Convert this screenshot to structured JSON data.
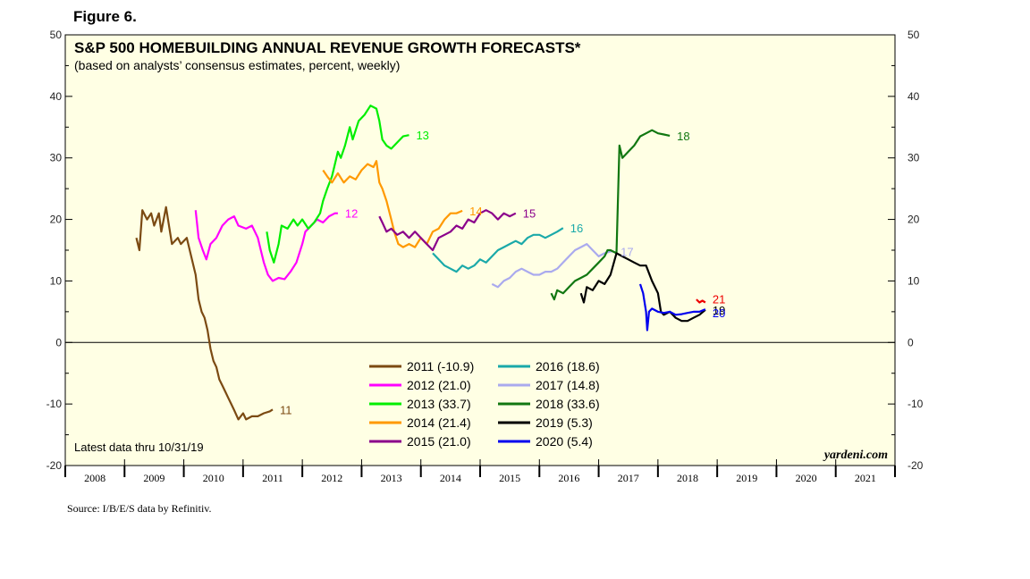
{
  "figure_label": "Figure 6.",
  "source": "Source: I/B/E/S data by Refinitiv.",
  "chart_data": {
    "type": "line",
    "title": "S&P 500 HOMEBUILDING ANNUAL REVENUE GROWTH FORECASTS*",
    "subtitle": "(based on analysts’ consensus estimates, percent, weekly)",
    "latest_note": "Latest data thru 10/31/19",
    "brand": "yardeni.com",
    "xlim": [
      2008,
      2022
    ],
    "ylim": [
      -20,
      50
    ],
    "y_ticks": [
      -20,
      -10,
      0,
      10,
      20,
      30,
      40,
      50
    ],
    "x_tick_labels": [
      "2008",
      "2009",
      "2010",
      "2011",
      "2012",
      "2013",
      "2014",
      "2015",
      "2016",
      "2017",
      "2018",
      "2019",
      "2020",
      "2021"
    ],
    "series": [
      {
        "name": "2011",
        "legend": "2011 (-10.9)",
        "end_label": "11",
        "color": "#7b4a12",
        "points": [
          [
            2009.2,
            17
          ],
          [
            2009.25,
            15
          ],
          [
            2009.3,
            21.5
          ],
          [
            2009.38,
            20
          ],
          [
            2009.45,
            21
          ],
          [
            2009.5,
            19
          ],
          [
            2009.58,
            21
          ],
          [
            2009.62,
            18
          ],
          [
            2009.7,
            22
          ],
          [
            2009.75,
            19
          ],
          [
            2009.8,
            16
          ],
          [
            2009.9,
            17
          ],
          [
            2009.95,
            16
          ],
          [
            2010.05,
            17
          ],
          [
            2010.1,
            15
          ],
          [
            2010.15,
            13
          ],
          [
            2010.2,
            11
          ],
          [
            2010.25,
            7
          ],
          [
            2010.3,
            5
          ],
          [
            2010.35,
            4
          ],
          [
            2010.4,
            2
          ],
          [
            2010.45,
            -1
          ],
          [
            2010.5,
            -3
          ],
          [
            2010.55,
            -4
          ],
          [
            2010.6,
            -6
          ],
          [
            2010.65,
            -7
          ],
          [
            2010.7,
            -8
          ],
          [
            2010.75,
            -9
          ],
          [
            2010.8,
            -10
          ],
          [
            2010.85,
            -11
          ],
          [
            2010.92,
            -12.5
          ],
          [
            2011.0,
            -11.5
          ],
          [
            2011.05,
            -12.5
          ],
          [
            2011.15,
            -12
          ],
          [
            2011.25,
            -12
          ],
          [
            2011.35,
            -11.5
          ],
          [
            2011.45,
            -11.2
          ],
          [
            2011.5,
            -10.9
          ]
        ]
      },
      {
        "name": "2012",
        "legend": "2012 (21.0)",
        "end_label": "12",
        "color": "#ff00ff",
        "points": [
          [
            2010.2,
            21.5
          ],
          [
            2010.25,
            17
          ],
          [
            2010.32,
            15
          ],
          [
            2010.38,
            13.5
          ],
          [
            2010.45,
            16
          ],
          [
            2010.55,
            17
          ],
          [
            2010.65,
            19
          ],
          [
            2010.75,
            20
          ],
          [
            2010.85,
            20.5
          ],
          [
            2010.92,
            19
          ],
          [
            2011.05,
            18.5
          ],
          [
            2011.15,
            19
          ],
          [
            2011.25,
            17
          ],
          [
            2011.3,
            15
          ],
          [
            2011.35,
            13
          ],
          [
            2011.42,
            11
          ],
          [
            2011.5,
            10
          ],
          [
            2011.6,
            10.5
          ],
          [
            2011.7,
            10.3
          ],
          [
            2011.8,
            11.5
          ],
          [
            2011.9,
            13
          ],
          [
            2012.0,
            16
          ],
          [
            2012.05,
            18
          ],
          [
            2012.15,
            19
          ],
          [
            2012.25,
            20
          ],
          [
            2012.35,
            19.5
          ],
          [
            2012.45,
            20.5
          ],
          [
            2012.55,
            21
          ],
          [
            2012.6,
            21
          ]
        ]
      },
      {
        "name": "2013",
        "legend": "2013 (33.7)",
        "end_label": "13",
        "color": "#00ee00",
        "points": [
          [
            2011.4,
            18
          ],
          [
            2011.45,
            15
          ],
          [
            2011.52,
            13
          ],
          [
            2011.6,
            16
          ],
          [
            2011.65,
            19
          ],
          [
            2011.75,
            18.5
          ],
          [
            2011.85,
            20
          ],
          [
            2011.92,
            19
          ],
          [
            2012.0,
            20
          ],
          [
            2012.1,
            18.5
          ],
          [
            2012.2,
            19.5
          ],
          [
            2012.3,
            21
          ],
          [
            2012.35,
            23
          ],
          [
            2012.42,
            25
          ],
          [
            2012.5,
            27
          ],
          [
            2012.55,
            29
          ],
          [
            2012.6,
            31
          ],
          [
            2012.65,
            30
          ],
          [
            2012.72,
            32
          ],
          [
            2012.8,
            35
          ],
          [
            2012.85,
            33
          ],
          [
            2012.95,
            36
          ],
          [
            2013.05,
            37
          ],
          [
            2013.15,
            38.5
          ],
          [
            2013.25,
            38
          ],
          [
            2013.3,
            36
          ],
          [
            2013.35,
            33
          ],
          [
            2013.42,
            32
          ],
          [
            2013.5,
            31.5
          ],
          [
            2013.6,
            32.5
          ],
          [
            2013.7,
            33.5
          ],
          [
            2013.8,
            33.7
          ]
        ]
      },
      {
        "name": "2014",
        "legend": "2014 (21.4)",
        "end_label": "14",
        "color": "#ff9900",
        "points": [
          [
            2012.35,
            28
          ],
          [
            2012.42,
            27
          ],
          [
            2012.5,
            26
          ],
          [
            2012.6,
            27.5
          ],
          [
            2012.7,
            26
          ],
          [
            2012.8,
            27
          ],
          [
            2012.9,
            26.5
          ],
          [
            2013.0,
            28
          ],
          [
            2013.1,
            29
          ],
          [
            2013.2,
            28.5
          ],
          [
            2013.25,
            29.5
          ],
          [
            2013.3,
            26
          ],
          [
            2013.35,
            25
          ],
          [
            2013.42,
            23
          ],
          [
            2013.5,
            20
          ],
          [
            2013.55,
            18
          ],
          [
            2013.62,
            16
          ],
          [
            2013.7,
            15.5
          ],
          [
            2013.8,
            16
          ],
          [
            2013.9,
            15.5
          ],
          [
            2014.0,
            17
          ],
          [
            2014.1,
            16
          ],
          [
            2014.2,
            18
          ],
          [
            2014.3,
            18.5
          ],
          [
            2014.4,
            20
          ],
          [
            2014.5,
            21
          ],
          [
            2014.6,
            21
          ],
          [
            2014.7,
            21.4
          ]
        ]
      },
      {
        "name": "2015",
        "legend": "2015 (21.0)",
        "end_label": "15",
        "color": "#8b008b",
        "points": [
          [
            2013.3,
            20.5
          ],
          [
            2013.35,
            19.5
          ],
          [
            2013.42,
            18
          ],
          [
            2013.5,
            18.5
          ],
          [
            2013.6,
            17.5
          ],
          [
            2013.7,
            18
          ],
          [
            2013.8,
            17
          ],
          [
            2013.9,
            18
          ],
          [
            2014.0,
            17
          ],
          [
            2014.1,
            16
          ],
          [
            2014.2,
            15
          ],
          [
            2014.3,
            17
          ],
          [
            2014.4,
            17.5
          ],
          [
            2014.5,
            18
          ],
          [
            2014.6,
            19
          ],
          [
            2014.7,
            18.5
          ],
          [
            2014.8,
            20
          ],
          [
            2014.9,
            19.5
          ],
          [
            2015.0,
            21
          ],
          [
            2015.1,
            21.5
          ],
          [
            2015.2,
            21
          ],
          [
            2015.3,
            20
          ],
          [
            2015.4,
            21
          ],
          [
            2015.5,
            20.5
          ],
          [
            2015.6,
            21
          ]
        ]
      },
      {
        "name": "2016",
        "legend": "2016 (18.6)",
        "end_label": "16",
        "color": "#1aa9a9",
        "points": [
          [
            2014.2,
            14.5
          ],
          [
            2014.3,
            13.5
          ],
          [
            2014.4,
            12.5
          ],
          [
            2014.5,
            12
          ],
          [
            2014.6,
            11.5
          ],
          [
            2014.7,
            12.5
          ],
          [
            2014.8,
            12
          ],
          [
            2014.9,
            12.5
          ],
          [
            2015.0,
            13.5
          ],
          [
            2015.1,
            13
          ],
          [
            2015.2,
            14
          ],
          [
            2015.3,
            15
          ],
          [
            2015.4,
            15.5
          ],
          [
            2015.5,
            16
          ],
          [
            2015.6,
            16.5
          ],
          [
            2015.7,
            16
          ],
          [
            2015.8,
            17
          ],
          [
            2015.9,
            17.5
          ],
          [
            2016.0,
            17.5
          ],
          [
            2016.1,
            17
          ],
          [
            2016.2,
            17.5
          ],
          [
            2016.3,
            18
          ],
          [
            2016.4,
            18.6
          ]
        ]
      },
      {
        "name": "2017",
        "legend": "2017 (14.8)",
        "end_label": "17",
        "color": "#aaaaee",
        "points": [
          [
            2015.2,
            9.5
          ],
          [
            2015.3,
            9
          ],
          [
            2015.4,
            10
          ],
          [
            2015.5,
            10.5
          ],
          [
            2015.6,
            11.5
          ],
          [
            2015.7,
            12
          ],
          [
            2015.8,
            11.5
          ],
          [
            2015.9,
            11
          ],
          [
            2016.0,
            11
          ],
          [
            2016.1,
            11.5
          ],
          [
            2016.2,
            11.5
          ],
          [
            2016.3,
            12
          ],
          [
            2016.4,
            13
          ],
          [
            2016.5,
            14
          ],
          [
            2016.6,
            15
          ],
          [
            2016.7,
            15.5
          ],
          [
            2016.8,
            16
          ],
          [
            2016.9,
            15
          ],
          [
            2017.0,
            14
          ],
          [
            2017.1,
            14.5
          ],
          [
            2017.2,
            14.8
          ],
          [
            2017.25,
            14.8
          ]
        ]
      },
      {
        "name": "2018",
        "legend": "2018 (33.6)",
        "end_label": "18",
        "color": "#117711",
        "points": [
          [
            2016.2,
            8
          ],
          [
            2016.25,
            7
          ],
          [
            2016.3,
            8.5
          ],
          [
            2016.4,
            8
          ],
          [
            2016.5,
            9
          ],
          [
            2016.6,
            10
          ],
          [
            2016.7,
            10.5
          ],
          [
            2016.8,
            11
          ],
          [
            2016.9,
            12
          ],
          [
            2017.0,
            13
          ],
          [
            2017.1,
            14
          ],
          [
            2017.15,
            15
          ],
          [
            2017.2,
            15
          ],
          [
            2017.3,
            14.5
          ],
          [
            2017.35,
            32
          ],
          [
            2017.4,
            30
          ],
          [
            2017.5,
            31
          ],
          [
            2017.6,
            32
          ],
          [
            2017.7,
            33.5
          ],
          [
            2017.8,
            34
          ],
          [
            2017.9,
            34.5
          ],
          [
            2018.0,
            34
          ],
          [
            2018.1,
            33.8
          ],
          [
            2018.2,
            33.6
          ]
        ]
      },
      {
        "name": "2019",
        "legend": "2019 (5.3)",
        "end_label": "19",
        "color": "#000000",
        "points": [
          [
            2016.7,
            8
          ],
          [
            2016.75,
            6.5
          ],
          [
            2016.8,
            9
          ],
          [
            2016.9,
            8.5
          ],
          [
            2017.0,
            10
          ],
          [
            2017.1,
            9.5
          ],
          [
            2017.2,
            11
          ],
          [
            2017.3,
            14.5
          ],
          [
            2017.4,
            14
          ],
          [
            2017.5,
            13.5
          ],
          [
            2017.6,
            13
          ],
          [
            2017.7,
            12.5
          ],
          [
            2017.8,
            12.5
          ],
          [
            2017.9,
            10
          ],
          [
            2018.0,
            8
          ],
          [
            2018.05,
            5
          ],
          [
            2018.1,
            4.5
          ],
          [
            2018.2,
            5
          ],
          [
            2018.3,
            4
          ],
          [
            2018.4,
            3.5
          ],
          [
            2018.5,
            3.5
          ],
          [
            2018.6,
            4
          ],
          [
            2018.7,
            4.5
          ],
          [
            2018.8,
            5.3
          ]
        ]
      },
      {
        "name": "2020",
        "legend": "2020 (5.4)",
        "end_label": "20",
        "color": "#0000ee",
        "points": [
          [
            2017.7,
            9.5
          ],
          [
            2017.75,
            8
          ],
          [
            2017.8,
            5
          ],
          [
            2017.82,
            2
          ],
          [
            2017.85,
            5
          ],
          [
            2017.9,
            5.5
          ],
          [
            2018.0,
            5
          ],
          [
            2018.1,
            4.8
          ],
          [
            2018.2,
            5
          ],
          [
            2018.3,
            4.5
          ],
          [
            2018.4,
            4.6
          ],
          [
            2018.5,
            4.8
          ],
          [
            2018.6,
            5
          ],
          [
            2018.7,
            5
          ],
          [
            2018.8,
            5.4
          ]
        ]
      },
      {
        "name": "2021",
        "legend": "",
        "end_label": "21",
        "color": "#ee0000",
        "points": [
          [
            2018.65,
            7
          ],
          [
            2018.7,
            6.5
          ],
          [
            2018.75,
            6.8
          ],
          [
            2018.8,
            6.5
          ]
        ]
      }
    ]
  }
}
